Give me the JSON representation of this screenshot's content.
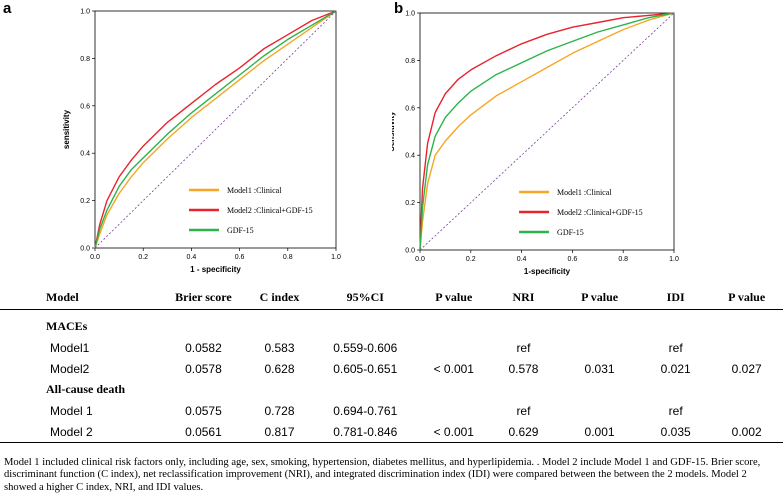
{
  "figure": {
    "panel_a_label": "a",
    "panel_b_label": "b",
    "colors": {
      "model1": "#f5a623",
      "model2": "#e8232d",
      "gdf15": "#2db34a",
      "reference": "#7b3f98"
    }
  },
  "chart_data": [
    {
      "type": "line",
      "panel": "a",
      "xlabel": "1 - specificity",
      "ylabel": "sensitivity",
      "xlim": [
        0,
        1
      ],
      "ylim": [
        0,
        1
      ],
      "xticks": [
        "0.0",
        "0.2",
        "0.4",
        "0.6",
        "0.8",
        "1.0"
      ],
      "yticks": [
        "0.0",
        "0.2",
        "0.4",
        "0.6",
        "0.8",
        "1.0"
      ],
      "legend_position": "lower-right",
      "series": [
        {
          "name": "Model1 :Clinical",
          "color": "#f5a623",
          "x": [
            0,
            0.02,
            0.05,
            0.1,
            0.15,
            0.2,
            0.3,
            0.4,
            0.5,
            0.6,
            0.7,
            0.8,
            0.9,
            1.0
          ],
          "y": [
            0,
            0.06,
            0.14,
            0.23,
            0.3,
            0.36,
            0.46,
            0.55,
            0.63,
            0.71,
            0.79,
            0.86,
            0.93,
            1.0
          ]
        },
        {
          "name": "Model2 :Clinical+GDF-15",
          "color": "#e8232d",
          "x": [
            0,
            0.02,
            0.05,
            0.1,
            0.15,
            0.2,
            0.3,
            0.4,
            0.5,
            0.6,
            0.7,
            0.8,
            0.9,
            1.0
          ],
          "y": [
            0,
            0.1,
            0.2,
            0.3,
            0.37,
            0.43,
            0.53,
            0.61,
            0.69,
            0.76,
            0.84,
            0.9,
            0.96,
            1.0
          ]
        },
        {
          "name": "GDF-15",
          "color": "#2db34a",
          "x": [
            0,
            0.02,
            0.05,
            0.1,
            0.15,
            0.2,
            0.3,
            0.4,
            0.5,
            0.6,
            0.7,
            0.8,
            0.9,
            1.0
          ],
          "y": [
            0,
            0.08,
            0.16,
            0.26,
            0.33,
            0.38,
            0.48,
            0.57,
            0.65,
            0.73,
            0.81,
            0.88,
            0.94,
            1.0
          ]
        },
        {
          "name": "Reference",
          "color": "#7b3f98",
          "dashed": true,
          "x": [
            0,
            1
          ],
          "y": [
            0,
            1
          ]
        }
      ]
    },
    {
      "type": "line",
      "panel": "b",
      "xlabel": "1-specificity",
      "ylabel": "Sensitivity",
      "xlim": [
        0,
        1
      ],
      "ylim": [
        0,
        1
      ],
      "xticks": [
        "0.0",
        "0.2",
        "0.4",
        "0.6",
        "0.8",
        "1.0"
      ],
      "yticks": [
        "0.0",
        "0.2",
        "0.4",
        "0.6",
        "0.8",
        "1.0"
      ],
      "legend_position": "lower-right",
      "series": [
        {
          "name": "Model1 :Clinical",
          "color": "#f5a623",
          "x": [
            0,
            0.01,
            0.03,
            0.06,
            0.1,
            0.15,
            0.2,
            0.3,
            0.4,
            0.5,
            0.6,
            0.7,
            0.8,
            0.9,
            1.0
          ],
          "y": [
            0,
            0.12,
            0.28,
            0.4,
            0.46,
            0.52,
            0.57,
            0.65,
            0.71,
            0.77,
            0.83,
            0.88,
            0.93,
            0.97,
            1.0
          ]
        },
        {
          "name": "Model2 :Clinical+GDF-15",
          "color": "#e8232d",
          "x": [
            0,
            0.01,
            0.03,
            0.06,
            0.1,
            0.15,
            0.2,
            0.3,
            0.4,
            0.5,
            0.6,
            0.7,
            0.8,
            0.9,
            1.0
          ],
          "y": [
            0,
            0.26,
            0.45,
            0.58,
            0.66,
            0.72,
            0.76,
            0.82,
            0.87,
            0.91,
            0.94,
            0.96,
            0.98,
            0.99,
            1.0
          ]
        },
        {
          "name": "GDF-15",
          "color": "#2db34a",
          "x": [
            0,
            0.01,
            0.03,
            0.06,
            0.1,
            0.15,
            0.2,
            0.3,
            0.4,
            0.5,
            0.6,
            0.7,
            0.8,
            0.9,
            1.0
          ],
          "y": [
            0,
            0.18,
            0.36,
            0.48,
            0.56,
            0.62,
            0.67,
            0.74,
            0.79,
            0.84,
            0.88,
            0.92,
            0.95,
            0.98,
            1.0
          ]
        },
        {
          "name": "Reference",
          "color": "#7b3f98",
          "dashed": true,
          "x": [
            0,
            1
          ],
          "y": [
            0,
            1
          ]
        }
      ]
    }
  ],
  "table": {
    "headers": [
      "Model",
      "Brier score",
      "C index",
      "95%CI",
      "P value",
      "NRI",
      "P value",
      "IDI",
      "P value"
    ],
    "groups": [
      {
        "title": "MACEs",
        "rows": [
          [
            "Model1",
            "0.0582",
            "0.583",
            "0.559-0.606",
            "",
            "ref",
            "",
            "ref",
            ""
          ],
          [
            "Model2",
            "0.0578",
            "0.628",
            "0.605-0.651",
            "< 0.001",
            "0.578",
            "0.031",
            "0.021",
            "0.027"
          ]
        ]
      },
      {
        "title": "All-cause death",
        "rows": [
          [
            "Model 1",
            "0.0575",
            "0.728",
            "0.694-0.761",
            "",
            "ref",
            "",
            "ref",
            ""
          ],
          [
            "Model 2",
            "0.0561",
            "0.817",
            "0.781-0.846",
            "< 0.001",
            "0.629",
            "0.001",
            "0.035",
            "0.002"
          ]
        ]
      }
    ]
  },
  "caption": "Model 1 included clinical risk factors only, including age, sex, smoking, hypertension, diabetes mellitus, and hyperlipidemia. . Model 2 include Model 1 and GDF-15. Brier score, discriminant function (C index), net reclassification improvement (NRI), and integrated discrimination index (IDI) were compared between the between the 2 models. Model 2 showed a higher C index, NRI, and IDI values."
}
